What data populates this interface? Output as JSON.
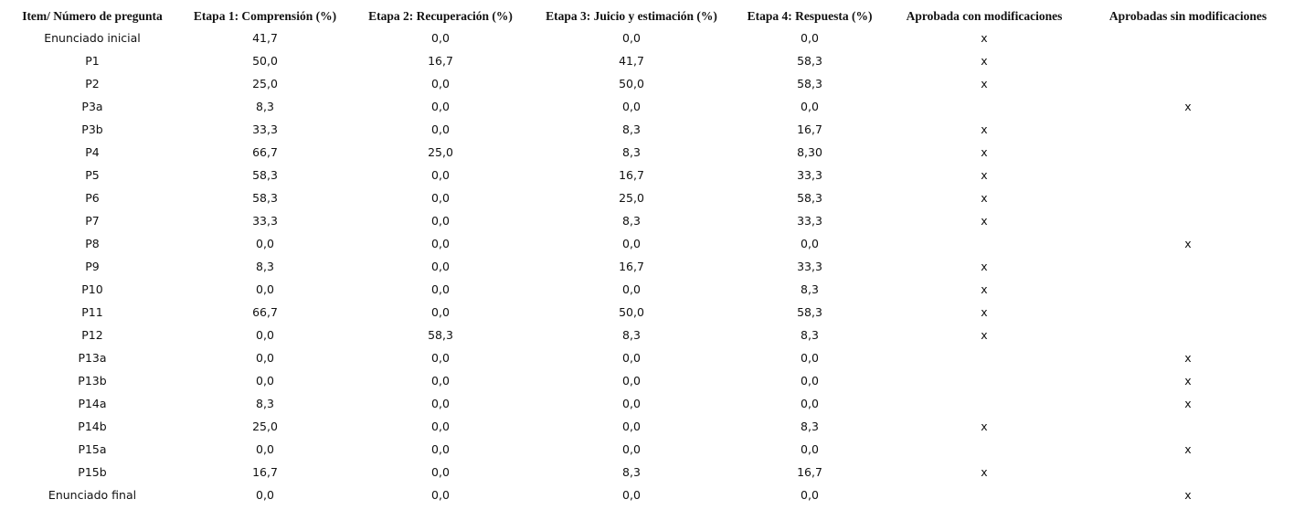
{
  "table": {
    "headers": [
      "Item/ Número de pregunta",
      "Etapa 1: Comprensión (%)",
      "Etapa 2: Recuperación (%)",
      "Etapa 3: Juicio y  estimación (%)",
      "Etapa 4: Respuesta (%)",
      "Aprobada con modificaciones",
      "Aprobadas sin modificaciones"
    ],
    "rows": [
      [
        "Enunciado inicial",
        "41,7",
        "0,0",
        "0,0",
        "0,0",
        "x",
        null
      ],
      [
        "P1",
        "50,0",
        "16,7",
        "41,7",
        "58,3",
        "x",
        null
      ],
      [
        "P2",
        "25,0",
        "0,0",
        "50,0",
        "58,3",
        "x",
        null
      ],
      [
        "P3a",
        "8,3",
        "0,0",
        "0,0",
        "0,0",
        null,
        "x"
      ],
      [
        "P3b",
        "33,3",
        "0,0",
        "8,3",
        "16,7",
        "x",
        null
      ],
      [
        "P4",
        "66,7",
        "25,0",
        "8,3",
        "8,30",
        "x",
        null
      ],
      [
        "P5",
        "58,3",
        "0,0",
        "16,7",
        "33,3",
        "x",
        null
      ],
      [
        "P6",
        "58,3",
        "0,0",
        "25,0",
        "58,3",
        "x",
        null
      ],
      [
        "P7",
        "33,3",
        "0,0",
        "8,3",
        "33,3",
        "x",
        null
      ],
      [
        "P8",
        "0,0",
        "0,0",
        "0,0",
        "0,0",
        null,
        "x"
      ],
      [
        "P9",
        "8,3",
        "0,0",
        "16,7",
        "33,3",
        "x",
        null
      ],
      [
        "P10",
        "0,0",
        "0,0",
        "0,0",
        "8,3",
        "x",
        null
      ],
      [
        "P11",
        "66,7",
        "0,0",
        "50,0",
        "58,3",
        "x",
        null
      ],
      [
        "P12",
        "0,0",
        "58,3",
        "8,3",
        "8,3",
        "x",
        null
      ],
      [
        "P13a",
        "0,0",
        "0,0",
        "0,0",
        "0,0",
        null,
        "x"
      ],
      [
        "P13b",
        "0,0",
        "0,0",
        "0,0",
        "0,0",
        null,
        "x"
      ],
      [
        "P14a",
        "8,3",
        "0,0",
        "0,0",
        "0,0",
        null,
        "x"
      ],
      [
        "P14b",
        "25,0",
        "0,0",
        "0,0",
        "8,3",
        "x",
        null
      ],
      [
        "P15a",
        "0,0",
        "0,0",
        "0,0",
        "0,0",
        null,
        "x"
      ],
      [
        "P15b",
        "16,7",
        "0,0",
        "8,3",
        "16,7",
        "x",
        null
      ],
      [
        "Enunciado final",
        "0,0",
        "0,0",
        "0,0",
        "0,0",
        null,
        "x"
      ]
    ]
  }
}
